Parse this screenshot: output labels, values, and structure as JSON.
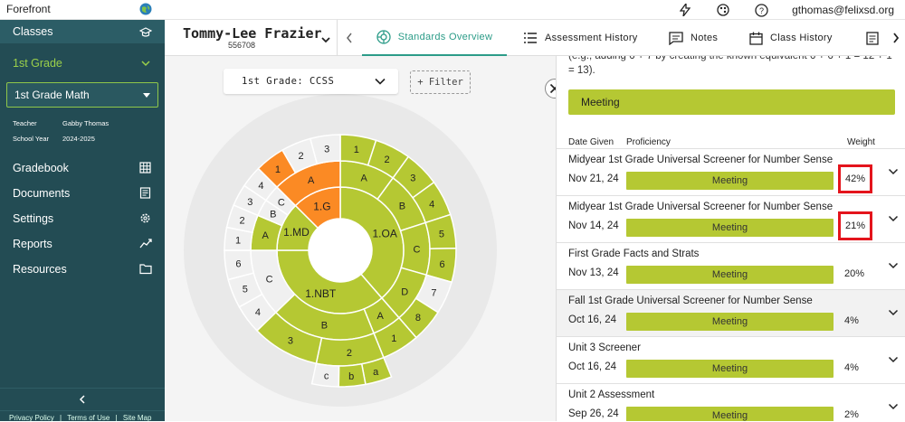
{
  "topbar": {
    "app_name": "Forefront",
    "logo_icon": "globe-logo-icon",
    "icons": [
      "bolt-icon",
      "palette-icon",
      "help-icon"
    ],
    "user_email": "gthomas@felixsd.org"
  },
  "sidebar": {
    "classes_label": "Classes",
    "grade_label": "1st Grade",
    "course_selected": "1st Grade Math",
    "teacher_label": "Teacher",
    "teacher_value": "Gabby Thomas",
    "year_label": "School Year",
    "year_value": "2024-2025",
    "items": [
      {
        "label": "Gradebook",
        "icon": "grid-icon"
      },
      {
        "label": "Documents",
        "icon": "document-icon"
      },
      {
        "label": "Settings",
        "icon": "gear-icon"
      },
      {
        "label": "Reports",
        "icon": "trend-icon"
      },
      {
        "label": "Resources",
        "icon": "folder-icon"
      }
    ],
    "footer": [
      "Privacy Policy",
      "|",
      "Terms of Use",
      "|",
      "Site Map"
    ]
  },
  "student": {
    "name": "Tommy-Lee Frazier",
    "id": "556708"
  },
  "tabs": [
    {
      "label": "Standards Overview",
      "icon": "sunburst-icon",
      "active": true
    },
    {
      "label": "Assessment History",
      "icon": "list-icon",
      "active": false
    },
    {
      "label": "Notes",
      "icon": "chat-icon",
      "active": false
    },
    {
      "label": "Class History",
      "icon": "calendar-icon",
      "active": false
    }
  ],
  "chart_controls": {
    "grade_select": "1st Grade: CCSS",
    "filter_label": "+ Filter"
  },
  "chart_data": {
    "type": "sunburst",
    "colors": {
      "met": "#b5c833",
      "not_met": "#fb8a24",
      "none": "#f0f0f0"
    },
    "domains": [
      {
        "label": "1.OA",
        "status": "met",
        "clusters": [
          {
            "label": "A",
            "status": "met",
            "standards": [
              {
                "label": "1",
                "status": "met"
              },
              {
                "label": "2",
                "status": "met"
              }
            ]
          },
          {
            "label": "B",
            "status": "met",
            "standards": [
              {
                "label": "3",
                "status": "met"
              },
              {
                "label": "4",
                "status": "met"
              }
            ]
          },
          {
            "label": "C",
            "status": "met",
            "standards": [
              {
                "label": "5",
                "status": "met"
              },
              {
                "label": "6",
                "status": "met"
              }
            ]
          },
          {
            "label": "D",
            "status": "met",
            "standards": [
              {
                "label": "7",
                "status": "none"
              },
              {
                "label": "8",
                "status": "met"
              }
            ]
          }
        ]
      },
      {
        "label": "1.NBT",
        "status": "met",
        "clusters": [
          {
            "label": "A",
            "status": "met",
            "standards": [
              {
                "label": "1",
                "status": "met"
              }
            ]
          },
          {
            "label": "B",
            "status": "met",
            "standards": [
              {
                "label": "2",
                "status": "met",
                "subs": [
                  {
                    "label": "a",
                    "status": "met"
                  },
                  {
                    "label": "b",
                    "status": "met"
                  },
                  {
                    "label": "c",
                    "status": "none"
                  }
                ]
              },
              {
                "label": "3",
                "status": "met"
              }
            ]
          },
          {
            "label": "C",
            "status": "none",
            "standards": [
              {
                "label": "4",
                "status": "none"
              },
              {
                "label": "5",
                "status": "none"
              },
              {
                "label": "6",
                "status": "none"
              }
            ]
          }
        ]
      },
      {
        "label": "1.MD",
        "status": "met",
        "clusters": [
          {
            "label": "A",
            "status": "met",
            "standards": [
              {
                "label": "1",
                "status": "none"
              },
              {
                "label": "2",
                "status": "none"
              }
            ]
          },
          {
            "label": "B",
            "status": "none",
            "standards": [
              {
                "label": "3",
                "status": "none"
              }
            ]
          },
          {
            "label": "C",
            "status": "none",
            "standards": [
              {
                "label": "4",
                "status": "none"
              }
            ]
          }
        ]
      },
      {
        "label": "1.G",
        "status": "not_met",
        "clusters": [
          {
            "label": "A",
            "status": "not_met",
            "standards": [
              {
                "label": "1",
                "status": "not_met"
              },
              {
                "label": "2",
                "status": "none"
              },
              {
                "label": "3",
                "status": "none"
              }
            ]
          }
        ]
      }
    ]
  },
  "detail": {
    "description": "(e.g., adding 6 + 7 by creating the known equivalent 6 + 6 + 1 = 12 + 1 = 13).",
    "overall_proficiency": "Meeting",
    "headers": {
      "date": "Date Given",
      "proficiency": "Proficiency",
      "weight": "Weight"
    },
    "rows": [
      {
        "title": "Midyear 1st Grade Universal Screener for Number Sense",
        "date": "Nov 21, 24",
        "proficiency": "Meeting",
        "weight": "42%",
        "highlighted": true,
        "shaded": false
      },
      {
        "title": "Midyear 1st Grade Universal Screener for Number Sense",
        "date": "Nov 14, 24",
        "proficiency": "Meeting",
        "weight": "21%",
        "highlighted": true,
        "shaded": false
      },
      {
        "title": "First Grade Facts and Strats",
        "date": "Nov 13, 24",
        "proficiency": "Meeting",
        "weight": "20%",
        "highlighted": false,
        "shaded": false
      },
      {
        "title": "Fall 1st Grade Universal Screener for Number Sense",
        "date": "Oct 16, 24",
        "proficiency": "Meeting",
        "weight": "4%",
        "highlighted": false,
        "shaded": true
      },
      {
        "title": "Unit 3 Screener",
        "date": "Oct 16, 24",
        "proficiency": "Meeting",
        "weight": "4%",
        "highlighted": false,
        "shaded": false
      },
      {
        "title": "Unit 2 Assessment",
        "date": "Sep 26, 24",
        "proficiency": "Meeting",
        "weight": "2%",
        "highlighted": false,
        "shaded": false
      }
    ]
  }
}
